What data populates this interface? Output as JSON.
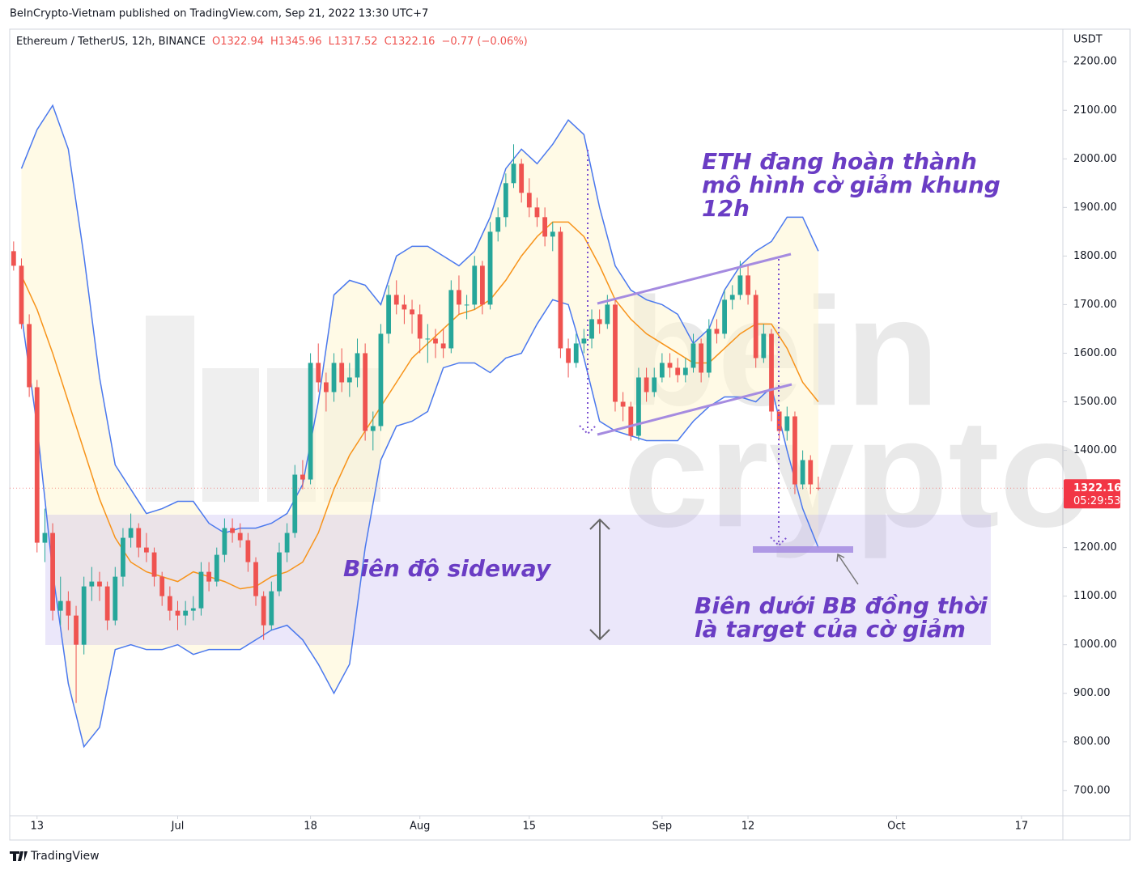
{
  "header": {
    "published": "BeInCrypto-Vietnam published on TradingView.com, Sep 21, 2022 13:30 UTC+7",
    "footer": "TradingView"
  },
  "chart_data": {
    "type": "candlestick",
    "title": "Ethereum / TetherUS, 12h, BINANCE",
    "legend_values": [
      "O1322.94",
      "H1345.96",
      "L1317.52",
      "C1322.16",
      "−0.77 (−0.06%)"
    ],
    "y_axis_label": "USDT",
    "x": [
      -3,
      -2,
      -1,
      0,
      1,
      2,
      3,
      4,
      5,
      6,
      7,
      8,
      9,
      10,
      11,
      12,
      13,
      14,
      15,
      16,
      17,
      18,
      19,
      20,
      21,
      22,
      23,
      24,
      25,
      26,
      27,
      28,
      29,
      30,
      31,
      32,
      33,
      34,
      35,
      36,
      37,
      38,
      39,
      40,
      41,
      42,
      43,
      44,
      45,
      46,
      47,
      48,
      49,
      50,
      51,
      52,
      53,
      54,
      55,
      56,
      57,
      58,
      59,
      60,
      61,
      62,
      63,
      64,
      65,
      66,
      67,
      68,
      69,
      70,
      71,
      72,
      73,
      74,
      75,
      76,
      77,
      78,
      79,
      80,
      81,
      82,
      83,
      84,
      85,
      86,
      87,
      88,
      89,
      90,
      91,
      92,
      93,
      94,
      95,
      96,
      97,
      98,
      99,
      100
    ],
    "ohlc": [
      [
        1810,
        1830,
        1770,
        1780
      ],
      [
        1780,
        1795,
        1650,
        1660
      ],
      [
        1660,
        1680,
        1510,
        1530
      ],
      [
        1530,
        1545,
        1190,
        1210
      ],
      [
        1210,
        1280,
        1170,
        1230
      ],
      [
        1230,
        1250,
        1050,
        1070
      ],
      [
        1070,
        1140,
        1040,
        1090
      ],
      [
        1090,
        1110,
        1030,
        1060
      ],
      [
        1060,
        1080,
        880,
        1000
      ],
      [
        1000,
        1140,
        980,
        1120
      ],
      [
        1120,
        1160,
        1090,
        1130
      ],
      [
        1130,
        1150,
        1090,
        1120
      ],
      [
        1120,
        1130,
        1030,
        1050
      ],
      [
        1050,
        1160,
        1040,
        1140
      ],
      [
        1140,
        1240,
        1120,
        1220
      ],
      [
        1220,
        1270,
        1200,
        1240
      ],
      [
        1240,
        1250,
        1180,
        1200
      ],
      [
        1200,
        1230,
        1170,
        1190
      ],
      [
        1190,
        1200,
        1120,
        1140
      ],
      [
        1140,
        1150,
        1080,
        1100
      ],
      [
        1100,
        1120,
        1050,
        1070
      ],
      [
        1070,
        1090,
        1030,
        1060
      ],
      [
        1060,
        1090,
        1040,
        1070
      ],
      [
        1070,
        1100,
        1050,
        1075
      ],
      [
        1075,
        1170,
        1060,
        1150
      ],
      [
        1150,
        1170,
        1110,
        1130
      ],
      [
        1130,
        1200,
        1120,
        1185
      ],
      [
        1185,
        1260,
        1170,
        1240
      ],
      [
        1240,
        1260,
        1210,
        1230
      ],
      [
        1230,
        1250,
        1200,
        1215
      ],
      [
        1215,
        1230,
        1150,
        1170
      ],
      [
        1170,
        1180,
        1080,
        1100
      ],
      [
        1100,
        1110,
        1010,
        1040
      ],
      [
        1040,
        1130,
        1030,
        1110
      ],
      [
        1110,
        1210,
        1100,
        1190
      ],
      [
        1190,
        1250,
        1170,
        1230
      ],
      [
        1230,
        1370,
        1220,
        1350
      ],
      [
        1350,
        1380,
        1320,
        1340
      ],
      [
        1340,
        1600,
        1330,
        1580
      ],
      [
        1580,
        1620,
        1520,
        1540
      ],
      [
        1540,
        1560,
        1480,
        1520
      ],
      [
        1520,
        1600,
        1500,
        1580
      ],
      [
        1580,
        1610,
        1520,
        1540
      ],
      [
        1540,
        1580,
        1510,
        1550
      ],
      [
        1550,
        1630,
        1530,
        1600
      ],
      [
        1600,
        1620,
        1420,
        1440
      ],
      [
        1440,
        1480,
        1400,
        1450
      ],
      [
        1450,
        1660,
        1440,
        1640
      ],
      [
        1640,
        1740,
        1620,
        1720
      ],
      [
        1720,
        1750,
        1680,
        1700
      ],
      [
        1700,
        1720,
        1660,
        1690
      ],
      [
        1690,
        1710,
        1640,
        1680
      ],
      [
        1680,
        1700,
        1600,
        1630
      ],
      [
        1630,
        1660,
        1580,
        1630
      ],
      [
        1630,
        1650,
        1590,
        1620
      ],
      [
        1620,
        1650,
        1590,
        1610
      ],
      [
        1610,
        1750,
        1600,
        1730
      ],
      [
        1730,
        1760,
        1680,
        1700
      ],
      [
        1700,
        1720,
        1670,
        1700
      ],
      [
        1700,
        1800,
        1690,
        1780
      ],
      [
        1780,
        1790,
        1680,
        1700
      ],
      [
        1700,
        1870,
        1690,
        1850
      ],
      [
        1850,
        1900,
        1830,
        1880
      ],
      [
        1880,
        1970,
        1860,
        1950
      ],
      [
        1950,
        2030,
        1940,
        1990
      ],
      [
        1990,
        2000,
        1910,
        1930
      ],
      [
        1930,
        1960,
        1880,
        1900
      ],
      [
        1900,
        1920,
        1860,
        1880
      ],
      [
        1880,
        1900,
        1820,
        1840
      ],
      [
        1840,
        1870,
        1810,
        1850
      ],
      [
        1850,
        1860,
        1590,
        1610
      ],
      [
        1610,
        1630,
        1550,
        1580
      ],
      [
        1580,
        1640,
        1570,
        1620
      ],
      [
        1620,
        1650,
        1600,
        1630
      ],
      [
        1630,
        1690,
        1610,
        1670
      ],
      [
        1670,
        1690,
        1640,
        1660
      ],
      [
        1660,
        1720,
        1650,
        1700
      ],
      [
        1700,
        1710,
        1480,
        1500
      ],
      [
        1500,
        1520,
        1460,
        1490
      ],
      [
        1490,
        1500,
        1420,
        1430
      ],
      [
        1430,
        1570,
        1420,
        1550
      ],
      [
        1550,
        1570,
        1500,
        1520
      ],
      [
        1520,
        1570,
        1510,
        1550
      ],
      [
        1550,
        1600,
        1540,
        1580
      ],
      [
        1580,
        1600,
        1550,
        1570
      ],
      [
        1570,
        1590,
        1540,
        1555
      ],
      [
        1555,
        1590,
        1540,
        1570
      ],
      [
        1570,
        1640,
        1560,
        1620
      ],
      [
        1620,
        1630,
        1540,
        1560
      ],
      [
        1560,
        1670,
        1550,
        1650
      ],
      [
        1650,
        1670,
        1620,
        1640
      ],
      [
        1640,
        1730,
        1630,
        1710
      ],
      [
        1710,
        1740,
        1690,
        1720
      ],
      [
        1720,
        1790,
        1710,
        1760
      ],
      [
        1760,
        1780,
        1700,
        1720
      ],
      [
        1720,
        1730,
        1570,
        1590
      ],
      [
        1590,
        1660,
        1580,
        1640
      ],
      [
        1640,
        1650,
        1460,
        1480
      ],
      [
        1480,
        1480,
        1420,
        1440
      ],
      [
        1440,
        1490,
        1420,
        1470
      ],
      [
        1470,
        1480,
        1310,
        1330
      ],
      [
        1330,
        1400,
        1320,
        1380
      ],
      [
        1380,
        1390,
        1310,
        1330
      ],
      [
        1322.94,
        1345.96,
        1317.52,
        1322.16
      ]
    ],
    "up_color": "#26a69a",
    "down_color": "#ef5350",
    "bands": {
      "x": [
        -2,
        0,
        2,
        4,
        6,
        8,
        10,
        12,
        14,
        16,
        18,
        20,
        22,
        24,
        26,
        28,
        30,
        32,
        34,
        36,
        38,
        40,
        42,
        44,
        46,
        48,
        50,
        52,
        54,
        56,
        58,
        60,
        62,
        64,
        66,
        68,
        70,
        72,
        74,
        76,
        78,
        80,
        82,
        84,
        86,
        88,
        90,
        92,
        94,
        96,
        98,
        100
      ],
      "upper": [
        1980,
        2060,
        2110,
        2020,
        1800,
        1550,
        1370,
        1320,
        1270,
        1280,
        1295,
        1295,
        1250,
        1230,
        1240,
        1240,
        1250,
        1270,
        1330,
        1500,
        1720,
        1750,
        1740,
        1700,
        1800,
        1820,
        1820,
        1800,
        1780,
        1810,
        1880,
        1980,
        2020,
        1990,
        2030,
        2080,
        2050,
        1900,
        1780,
        1730,
        1710,
        1700,
        1680,
        1620,
        1650,
        1730,
        1780,
        1810,
        1830,
        1880,
        1880,
        1810
      ],
      "middle": [
        1760,
        1690,
        1600,
        1500,
        1400,
        1300,
        1220,
        1170,
        1150,
        1140,
        1130,
        1150,
        1140,
        1130,
        1115,
        1120,
        1140,
        1150,
        1170,
        1230,
        1320,
        1390,
        1440,
        1490,
        1540,
        1590,
        1620,
        1650,
        1680,
        1690,
        1710,
        1750,
        1800,
        1840,
        1870,
        1870,
        1840,
        1780,
        1710,
        1670,
        1640,
        1620,
        1600,
        1580,
        1580,
        1610,
        1640,
        1660,
        1660,
        1610,
        1540,
        1500
      ],
      "lower": [
        1680,
        1450,
        1150,
        920,
        790,
        830,
        990,
        1000,
        990,
        990,
        1000,
        980,
        990,
        990,
        990,
        1010,
        1030,
        1040,
        1010,
        960,
        900,
        960,
        1200,
        1380,
        1450,
        1460,
        1480,
        1570,
        1580,
        1580,
        1560,
        1590,
        1600,
        1660,
        1710,
        1700,
        1590,
        1460,
        1440,
        1430,
        1420,
        1420,
        1420,
        1460,
        1490,
        1510,
        1510,
        1500,
        1530,
        1400,
        1280,
        1200
      ],
      "band_color": "#4a78ee",
      "middle_color": "#f7931a"
    },
    "last_price": 1322.16,
    "countdown": "05:29:53",
    "xlim": [
      -3.5,
      131.3
    ],
    "ylim": [
      648,
      2267
    ],
    "xticks": [
      {
        "value": 0,
        "label": "13"
      },
      {
        "value": 18,
        "label": "Jul"
      },
      {
        "value": 35,
        "label": "18"
      },
      {
        "value": 49,
        "label": "Aug"
      },
      {
        "value": 63,
        "label": "15"
      },
      {
        "value": 80,
        "label": "Sep"
      },
      {
        "value": 91,
        "label": "12"
      },
      {
        "value": 110,
        "label": "Oct"
      },
      {
        "value": 126,
        "label": "17"
      }
    ],
    "yticks": [
      {
        "value": 700,
        "label": "700.00"
      },
      {
        "value": 800,
        "label": "800.00"
      },
      {
        "value": 900,
        "label": "900.00"
      },
      {
        "value": 1000,
        "label": "1000.00"
      },
      {
        "value": 1100,
        "label": "1100.00"
      },
      {
        "value": 1200,
        "label": "1200.00"
      },
      {
        "value": 1300,
        "label": "1300.00"
      },
      {
        "value": 1400,
        "label": "1400.00"
      },
      {
        "value": 1500,
        "label": "1500.00"
      },
      {
        "value": 1600,
        "label": "1600.00"
      },
      {
        "value": 1700,
        "label": "1700.00"
      },
      {
        "value": 1800,
        "label": "1800.00"
      },
      {
        "value": 1900,
        "label": "1900.00"
      },
      {
        "value": 2000,
        "label": "2000.00"
      },
      {
        "value": 2100,
        "label": "2100.00"
      },
      {
        "value": 2200,
        "label": "2200.00"
      }
    ],
    "annotations": [
      [
        "ETH đang hoàn thành",
        "mô hình cờ giảm khung",
        "12h"
      ],
      [
        "Biên độ sideway"
      ],
      [
        "Biên dưới BB đồng thời",
        "là target của cờ giảm"
      ]
    ],
    "watermark": [
      "bein",
      "crypto"
    ]
  }
}
